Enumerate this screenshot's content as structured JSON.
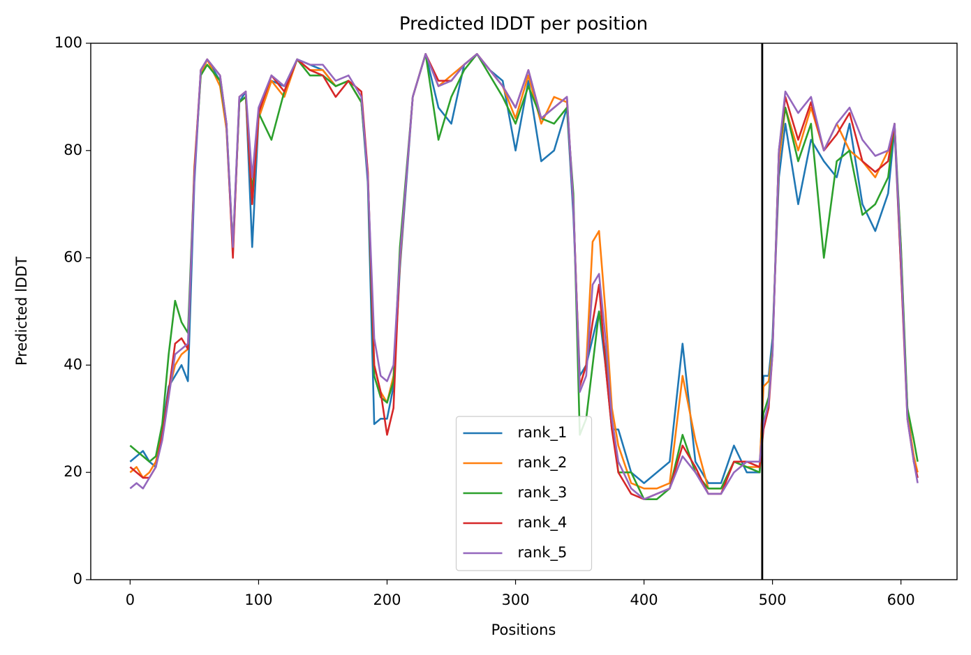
{
  "chart_data": {
    "type": "line",
    "title": "Predicted lDDT per position",
    "xlabel": "Positions",
    "ylabel": "Predicted lDDT",
    "x": [
      0,
      5,
      10,
      15,
      20,
      25,
      30,
      35,
      40,
      45,
      50,
      55,
      60,
      70,
      75,
      80,
      85,
      90,
      95,
      100,
      110,
      120,
      130,
      140,
      150,
      160,
      170,
      180,
      185,
      190,
      195,
      200,
      205,
      210,
      215,
      220,
      230,
      240,
      250,
      260,
      270,
      280,
      290,
      300,
      310,
      320,
      330,
      340,
      345,
      350,
      355,
      360,
      365,
      370,
      375,
      380,
      390,
      400,
      410,
      420,
      430,
      440,
      450,
      460,
      470,
      480,
      490,
      493,
      497,
      500,
      505,
      510,
      520,
      530,
      540,
      550,
      560,
      570,
      580,
      590,
      595,
      600,
      605,
      610,
      613
    ],
    "series": [
      {
        "name": "rank_1",
        "color": "#1f77b4",
        "values": [
          22,
          23,
          24,
          22,
          21,
          28,
          36,
          38,
          40,
          37,
          74,
          95,
          97,
          93,
          84,
          61,
          89,
          91,
          62,
          86,
          93,
          92,
          97,
          96,
          95,
          92,
          93,
          89,
          74,
          29,
          30,
          30,
          36,
          58,
          74,
          90,
          98,
          88,
          85,
          96,
          98,
          95,
          93,
          80,
          93,
          78,
          80,
          88,
          68,
          38,
          40,
          45,
          50,
          40,
          28,
          28,
          20,
          18,
          20,
          22,
          44,
          22,
          18,
          18,
          25,
          20,
          20,
          38,
          38,
          45,
          75,
          85,
          70,
          82,
          78,
          75,
          85,
          70,
          65,
          72,
          84,
          58,
          32,
          22,
          19
        ]
      },
      {
        "name": "rank_2",
        "color": "#ff7f0e",
        "values": [
          20,
          21,
          19,
          20,
          22,
          27,
          35,
          40,
          42,
          43,
          77,
          94,
          97,
          92,
          84,
          62,
          89,
          90,
          70,
          86,
          93,
          90,
          97,
          95,
          95,
          92,
          93,
          89,
          76,
          40,
          35,
          33,
          38,
          59,
          75,
          90,
          98,
          92,
          94,
          96,
          98,
          95,
          92,
          86,
          94,
          85,
          90,
          89,
          70,
          36,
          40,
          63,
          65,
          50,
          32,
          25,
          18,
          17,
          17,
          18,
          38,
          26,
          17,
          17,
          22,
          21,
          21,
          36,
          37,
          43,
          78,
          88,
          80,
          88,
          80,
          85,
          80,
          78,
          75,
          80,
          84,
          62,
          31,
          23,
          20
        ]
      },
      {
        "name": "rank_3",
        "color": "#2ca02c",
        "values": [
          25,
          24,
          23,
          22,
          23,
          29,
          42,
          52,
          48,
          46,
          76,
          94,
          96,
          93,
          85,
          62,
          89,
          90,
          72,
          87,
          82,
          91,
          97,
          94,
          94,
          92,
          93,
          89,
          75,
          38,
          34,
          33,
          37,
          62,
          76,
          90,
          98,
          82,
          90,
          95,
          98,
          94,
          90,
          85,
          92,
          86,
          85,
          88,
          72,
          27,
          30,
          40,
          50,
          42,
          30,
          20,
          20,
          15,
          15,
          17,
          27,
          20,
          17,
          17,
          22,
          21,
          20,
          31,
          34,
          43,
          80,
          88,
          78,
          85,
          60,
          78,
          80,
          68,
          70,
          75,
          85,
          62,
          32,
          26,
          22
        ]
      },
      {
        "name": "rank_4",
        "color": "#d62728",
        "values": [
          21,
          20,
          19,
          19,
          21,
          27,
          35,
          44,
          45,
          43,
          76,
          95,
          97,
          94,
          85,
          60,
          90,
          91,
          70,
          87,
          94,
          91,
          97,
          95,
          94,
          90,
          93,
          91,
          76,
          40,
          35,
          27,
          32,
          60,
          75,
          90,
          98,
          93,
          93,
          96,
          98,
          95,
          92,
          88,
          95,
          86,
          88,
          90,
          70,
          36,
          40,
          48,
          55,
          40,
          28,
          20,
          16,
          15,
          16,
          17,
          25,
          21,
          16,
          16,
          22,
          22,
          21,
          28,
          32,
          42,
          80,
          90,
          82,
          89,
          80,
          83,
          87,
          78,
          76,
          78,
          85,
          58,
          30,
          22,
          19
        ]
      },
      {
        "name": "rank_5",
        "color": "#9467bd",
        "values": [
          17,
          18,
          17,
          19,
          21,
          26,
          34,
          42,
          43,
          44,
          75,
          95,
          97,
          94,
          85,
          62,
          90,
          91,
          75,
          88,
          94,
          92,
          97,
          96,
          96,
          93,
          94,
          90,
          75,
          45,
          38,
          37,
          40,
          60,
          75,
          90,
          98,
          92,
          93,
          96,
          98,
          95,
          92,
          88,
          95,
          86,
          88,
          90,
          70,
          35,
          38,
          55,
          57,
          45,
          30,
          22,
          17,
          15,
          16,
          17,
          23,
          20,
          16,
          16,
          20,
          22,
          22,
          29,
          33,
          42,
          80,
          91,
          87,
          90,
          80,
          85,
          88,
          82,
          79,
          80,
          85,
          60,
          30,
          22,
          18
        ]
      }
    ],
    "xlim": [
      -30.65,
      643.65
    ],
    "xticks": [
      0,
      100,
      200,
      300,
      400,
      500,
      600
    ],
    "ylim": [
      0,
      100
    ],
    "yticks": [
      0,
      20,
      40,
      60,
      80,
      100
    ],
    "vline": 492,
    "vline_color": "#000000",
    "legend": "lower center"
  }
}
